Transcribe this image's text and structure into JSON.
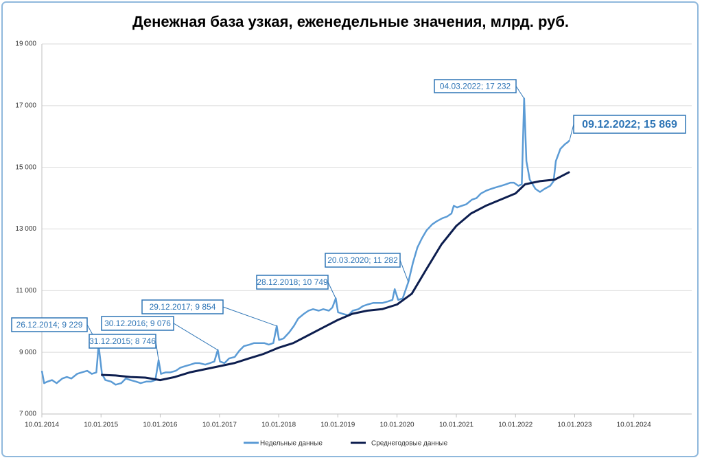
{
  "chart_data": {
    "type": "line",
    "title": "Денежная база узкая, еженедельные значения, млрд. руб.",
    "x_ticks_note": null,
    "xlim": [
      "10.01.2014",
      "01.01.2025"
    ],
    "xticks": [
      "10.01.2014",
      "10.01.2015",
      "10.01.2016",
      "10.01.2017",
      "10.01.2018",
      "10.01.2019",
      "10.01.2020",
      "10.01.2021",
      "10.01.2022",
      "10.01.2023",
      "10.01.2024"
    ],
    "ylim": [
      7000,
      19000
    ],
    "yticks": [
      {
        "value": 7000,
        "label": "7 000"
      },
      {
        "value": 9000,
        "label": "9 000"
      },
      {
        "value": 11000,
        "label": "11 000"
      },
      {
        "value": 13000,
        "label": "13 000"
      },
      {
        "value": 15000,
        "label": "15 000"
      },
      {
        "value": 17000,
        "label": "17 000"
      },
      {
        "value": 19000,
        "label": "19 000"
      }
    ],
    "grid": true,
    "series": [
      {
        "name": "Недельные данные",
        "color": "#5b9bd5",
        "x": [
          "10.01.2014",
          "24.01.2014",
          "14.02.2014",
          "14.03.2014",
          "11.04.2014",
          "16.05.2014",
          "13.06.2014",
          "11.07.2014",
          "15.08.2014",
          "12.09.2014",
          "17.10.2014",
          "14.11.2014",
          "12.12.2014",
          "26.12.2014",
          "16.01.2015",
          "06.02.2015",
          "13.03.2015",
          "10.04.2015",
          "15.05.2015",
          "12.06.2015",
          "10.07.2015",
          "14.08.2015",
          "11.09.2015",
          "16.10.2015",
          "13.11.2015",
          "11.12.2015",
          "31.12.2015",
          "15.01.2016",
          "12.02.2016",
          "11.03.2016",
          "15.04.2016",
          "13.05.2016",
          "10.06.2016",
          "15.07.2016",
          "12.08.2016",
          "09.09.2016",
          "14.10.2016",
          "11.11.2016",
          "09.12.2016",
          "30.12.2016",
          "13.01.2017",
          "10.02.2017",
          "10.03.2017",
          "14.04.2017",
          "12.05.2017",
          "09.06.2017",
          "14.07.2017",
          "11.08.2017",
          "08.09.2017",
          "13.10.2017",
          "10.11.2017",
          "08.12.2017",
          "29.12.2017",
          "12.01.2018",
          "09.02.2018",
          "16.03.2018",
          "13.04.2018",
          "11.05.2018",
          "15.06.2018",
          "13.07.2018",
          "10.08.2018",
          "14.09.2018",
          "12.10.2018",
          "16.11.2018",
          "07.12.2018",
          "28.12.2018",
          "11.01.2019",
          "08.02.2019",
          "15.03.2019",
          "12.04.2019",
          "17.05.2019",
          "14.06.2019",
          "12.07.2019",
          "16.08.2019",
          "13.09.2019",
          "11.10.2019",
          "15.11.2019",
          "13.12.2019",
          "27.12.2019",
          "17.01.2020",
          "14.02.2020",
          "20.03.2020",
          "17.04.2020",
          "15.05.2020",
          "12.06.2020",
          "10.07.2020",
          "14.08.2020",
          "11.09.2020",
          "16.10.2020",
          "13.11.2020",
          "11.12.2020",
          "25.12.2020",
          "15.01.2021",
          "12.02.2021",
          "12.03.2021",
          "16.04.2021",
          "14.05.2021",
          "11.06.2021",
          "16.07.2021",
          "13.08.2021",
          "10.09.2021",
          "15.10.2021",
          "12.11.2021",
          "10.12.2021",
          "31.12.2021",
          "28.01.2022",
          "18.02.2022",
          "04.03.2022",
          "18.03.2022",
          "08.04.2022",
          "13.05.2022",
          "10.06.2022",
          "08.07.2022",
          "12.08.2022",
          "02.09.2022",
          "16.09.2022",
          "14.10.2022",
          "11.11.2022",
          "25.11.2022",
          "09.12.2022"
        ],
        "values": [
          8400,
          8000,
          8050,
          8100,
          8000,
          8150,
          8200,
          8150,
          8300,
          8350,
          8400,
          8300,
          8350,
          9229,
          8300,
          8100,
          8050,
          7950,
          8000,
          8150,
          8100,
          8050,
          8000,
          8050,
          8050,
          8100,
          8746,
          8300,
          8350,
          8350,
          8400,
          8500,
          8550,
          8600,
          8650,
          8650,
          8600,
          8650,
          8700,
          9076,
          8700,
          8650,
          8800,
          8850,
          9050,
          9200,
          9250,
          9300,
          9300,
          9300,
          9250,
          9300,
          9854,
          9400,
          9450,
          9650,
          9850,
          10100,
          10250,
          10350,
          10400,
          10350,
          10400,
          10350,
          10450,
          10749,
          10300,
          10250,
          10200,
          10350,
          10400,
          10500,
          10550,
          10600,
          10600,
          10600,
          10650,
          10700,
          11050,
          10700,
          10750,
          11282,
          11900,
          12400,
          12700,
          12950,
          13150,
          13250,
          13350,
          13400,
          13500,
          13750,
          13700,
          13750,
          13800,
          13950,
          14000,
          14150,
          14250,
          14300,
          14350,
          14400,
          14450,
          14500,
          14500,
          14400,
          14450,
          17232,
          15200,
          14600,
          14300,
          14200,
          14300,
          14400,
          14550,
          15200,
          15600,
          15750,
          15800,
          15869
        ]
      },
      {
        "name": "Среднегодовые данные",
        "color": "#0d1e4f",
        "x": [
          "10.01.2015",
          "10.04.2015",
          "10.07.2015",
          "10.10.2015",
          "10.01.2016",
          "10.04.2016",
          "10.07.2016",
          "10.10.2016",
          "10.01.2017",
          "10.04.2017",
          "10.07.2017",
          "10.10.2017",
          "10.01.2018",
          "10.04.2018",
          "10.07.2018",
          "10.10.2018",
          "10.01.2019",
          "10.04.2019",
          "10.07.2019",
          "10.10.2019",
          "10.01.2020",
          "10.04.2020",
          "10.07.2020",
          "10.10.2020",
          "10.01.2021",
          "10.04.2021",
          "10.07.2021",
          "10.10.2021",
          "10.01.2022",
          "10.03.2022",
          "10.06.2022",
          "10.09.2022",
          "10.12.2022"
        ],
        "values": [
          8270,
          8250,
          8200,
          8180,
          8100,
          8200,
          8350,
          8450,
          8550,
          8650,
          8800,
          8950,
          9150,
          9300,
          9550,
          9800,
          10050,
          10250,
          10350,
          10400,
          10550,
          10900,
          11700,
          12500,
          13100,
          13500,
          13750,
          13950,
          14150,
          14450,
          14550,
          14600,
          14850
        ]
      }
    ],
    "annotations": [
      {
        "text": "26.12.2014; 9 229",
        "x": "26.12.2014",
        "value": 9229
      },
      {
        "text": "31.12.2015; 8 746",
        "x": "31.12.2015",
        "value": 8746
      },
      {
        "text": "30.12.2016; 9 076",
        "x": "30.12.2016",
        "value": 9076
      },
      {
        "text": "29.12.2017; 9 854",
        "x": "29.12.2017",
        "value": 9854
      },
      {
        "text": "28.12.2018; 10 749",
        "x": "28.12.2018",
        "value": 10749
      },
      {
        "text": "20.03.2020; 11 282",
        "x": "20.03.2020",
        "value": 11282
      },
      {
        "text": "04.03.2022; 17 232",
        "x": "04.03.2022",
        "value": 17232
      },
      {
        "text": "09.12.2022; 15 869",
        "x": "09.12.2022",
        "value": 15869
      }
    ]
  }
}
